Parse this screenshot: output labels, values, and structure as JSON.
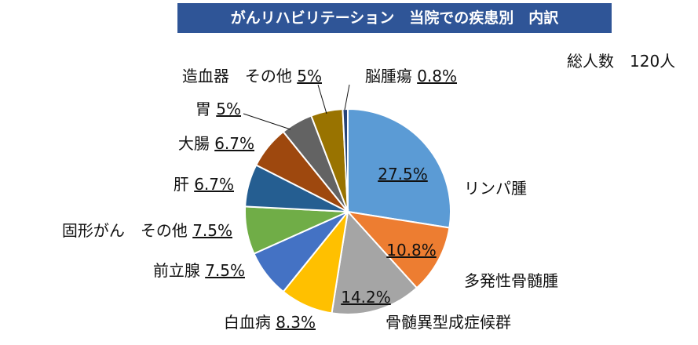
{
  "title": "がんリハビリテーション　当院での疾患別　内訳",
  "total_label": "総人数　120人",
  "chart_data": {
    "type": "pie",
    "title": "がんリハビリテーション　当院での疾患別　内訳",
    "total": "総人数　120人",
    "slices": [
      {
        "name": "リンパ腫",
        "value": 27.5,
        "value_label": "27.5%",
        "color": "#5b9bd5"
      },
      {
        "name": "多発性骨髄腫",
        "value": 10.8,
        "value_label": "10.8%",
        "color": "#ed7d31"
      },
      {
        "name": "骨髄異型成症候群",
        "value": 14.2,
        "value_label": "14.2%",
        "color": "#a5a5a5"
      },
      {
        "name": "白血病",
        "value": 8.3,
        "value_label": "8.3%",
        "color": "#ffc000"
      },
      {
        "name": "前立腺",
        "value": 7.5,
        "value_label": "7.5%",
        "color": "#4472c4"
      },
      {
        "name": "固形がん　その他",
        "value": 7.5,
        "value_label": "7.5%",
        "color": "#70ad47"
      },
      {
        "name": "肝",
        "value": 6.7,
        "value_label": "6.7%",
        "color": "#255e91"
      },
      {
        "name": "大腸",
        "value": 6.7,
        "value_label": "6.7%",
        "color": "#9e480e"
      },
      {
        "name": "胃",
        "value": 5,
        "value_label": "5%",
        "color": "#636363"
      },
      {
        "name": "造血器　その他",
        "value": 5,
        "value_label": "5%",
        "color": "#997300"
      },
      {
        "name": "脳腫瘍",
        "value": 0.8,
        "value_label": "0.8%",
        "color": "#264478"
      }
    ]
  }
}
